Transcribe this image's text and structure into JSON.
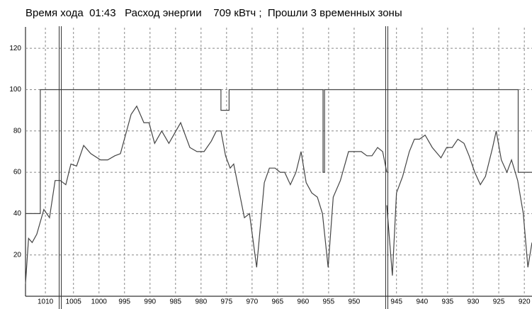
{
  "chart_data": {
    "type": "line",
    "title": "Время хода  01:43   Расход энергии    709 кВтч ;  Прошли 3 временных зоны",
    "ylim": [
      0,
      130
    ],
    "yticks": [
      20,
      40,
      60,
      80,
      100,
      120
    ],
    "grid": true,
    "color": "#444444",
    "limit_color": "#444444",
    "segments": [
      {
        "xlim": [
          1013.9,
          1007.1
        ],
        "xticks": [
          1010
        ],
        "x": [
          1013.9,
          1013.3,
          1012.6,
          1011.7,
          1010.3,
          1009.2,
          1008.1,
          1007.1
        ],
        "values": [
          6,
          28,
          26,
          30,
          42,
          38,
          56,
          56
        ],
        "limit_x": [
          1013.9,
          1011.0,
          1011.0,
          1007.1
        ],
        "limit_values": [
          40,
          40,
          100,
          100
        ]
      },
      {
        "xlim": [
          1007.6,
          943.6
        ],
        "xticks": [
          1005,
          1000,
          995,
          990,
          985,
          980,
          975,
          970,
          965,
          960,
          955,
          950
        ],
        "x": [
          1007.6,
          1006.5,
          1005.5,
          1004.4,
          1003.0,
          1001.6,
          999.7,
          998.3,
          996.9,
          995.8,
          993.7,
          992.6,
          991.2,
          990.2,
          989.1,
          987.7,
          986.3,
          984.0,
          982.2,
          980.8,
          979.4,
          978.0,
          977.0,
          976.1,
          975.2,
          974.3,
          973.6,
          971.5,
          970.5,
          969.1,
          967.6,
          966.6,
          965.5,
          964.5,
          963.6,
          962.5,
          961.4,
          960.4,
          959.4,
          958.3,
          957.2,
          956.2,
          955.1,
          954.1,
          952.7,
          951.1,
          949.7,
          948.6,
          947.5,
          946.5,
          945.4,
          944.4,
          943.6
        ],
        "values": [
          56,
          54,
          64,
          63,
          73,
          69,
          66,
          66,
          68,
          69,
          88,
          92,
          84,
          84,
          74,
          80,
          74,
          84,
          72,
          70,
          70,
          75,
          80,
          80,
          68,
          62,
          64,
          38,
          40,
          14,
          55,
          62,
          62,
          60,
          60,
          54,
          60,
          70,
          55,
          50,
          48,
          40,
          14,
          48,
          56,
          70,
          70,
          70,
          68,
          68,
          72,
          70,
          60
        ],
        "limit_x": [
          1007.6,
          976.1,
          976.1,
          974.5,
          974.5,
          956.1,
          956.1,
          955.8,
          955.8,
          943.6
        ],
        "limit_values": [
          100,
          100,
          90,
          90,
          100,
          100,
          60,
          60,
          100,
          100
        ]
      },
      {
        "xlim": [
          946.9,
          918.5
        ],
        "xticks": [
          945,
          940,
          935,
          930,
          925,
          920
        ],
        "x": [
          946.9,
          945.8,
          945.0,
          943.8,
          942.5,
          941.5,
          940.5,
          939.4,
          938.0,
          936.3,
          935.2,
          934.1,
          933.0,
          931.8,
          930.8,
          929.7,
          928.6,
          927.6,
          926.2,
          925.5,
          924.5,
          923.4,
          922.5,
          921.3,
          920.2,
          919.3,
          918.5
        ],
        "values": [
          44,
          10,
          50,
          58,
          70,
          76,
          76,
          78,
          72,
          67,
          72,
          72,
          76,
          74,
          68,
          60,
          54,
          58,
          72,
          80,
          66,
          60,
          66,
          56,
          40,
          14,
          26
        ],
        "limit_x": [
          946.9,
          921.2,
          921.2,
          918.5
        ],
        "limit_values": [
          100,
          100,
          60,
          60
        ]
      }
    ]
  }
}
